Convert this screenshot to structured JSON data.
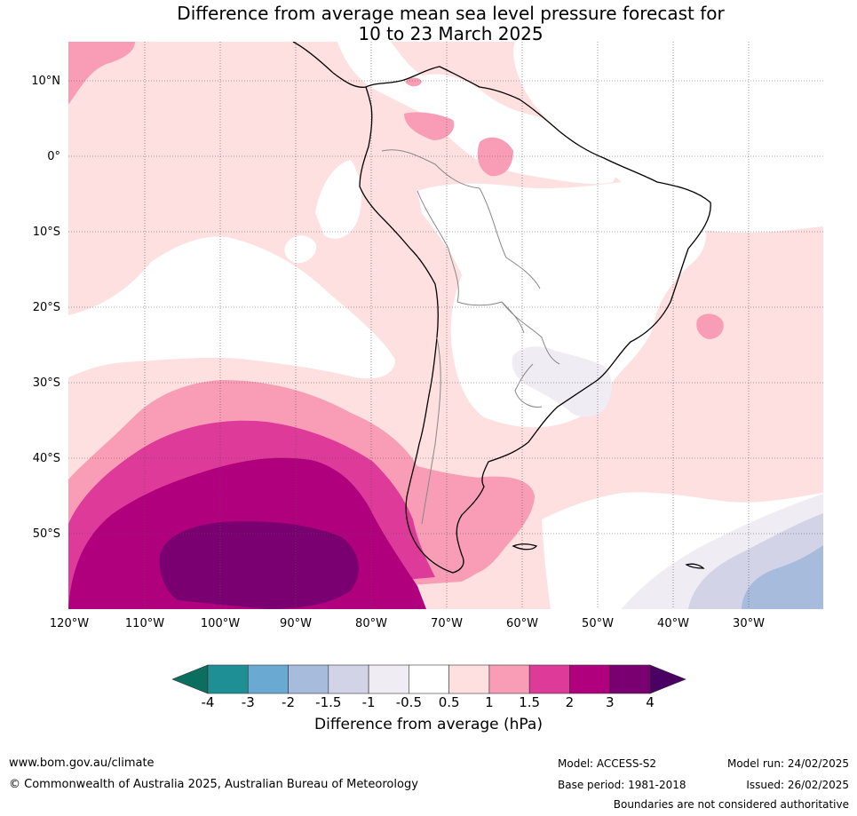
{
  "title_line1": "Difference from average mean sea level pressure forecast for",
  "title_line2": "10 to 23 March 2025",
  "lat_labels": [
    "10°N",
    "0°",
    "10°S",
    "20°S",
    "30°S",
    "40°S",
    "50°S"
  ],
  "lon_labels": [
    "120°W",
    "110°W",
    "100°W",
    "90°W",
    "80°W",
    "70°W",
    "60°W",
    "50°W",
    "40°W",
    "30°W"
  ],
  "colorbar": {
    "ticks": [
      "-4",
      "-3",
      "-2",
      "-1.5",
      "-1",
      "-0.5",
      "0.5",
      "1",
      "1.5",
      "2",
      "3",
      "4"
    ],
    "colors": [
      "#1f8f96",
      "#6aaad2",
      "#a7bbdc",
      "#d2d3e7",
      "#efecf3",
      "#ffffff",
      "#fde0df",
      "#f99db6",
      "#de3a99",
      "#b0007e",
      "#7a0071"
    ],
    "low_extend_color": "#0b6e5f",
    "high_extend_color": "#4b0063",
    "label": "Difference from average (hPa)"
  },
  "footer": {
    "website": "www.bom.gov.au/climate",
    "copyright": "© Commonwealth of Australia 2025, Australian Bureau of Meteorology",
    "model": "Model: ACCESS-S2",
    "base_period": "Base period: 1981-2018",
    "model_run": "Model run: 24/02/2025",
    "issued": "Issued: 26/02/2025",
    "disclaimer": "Boundaries are not considered authoritative"
  }
}
